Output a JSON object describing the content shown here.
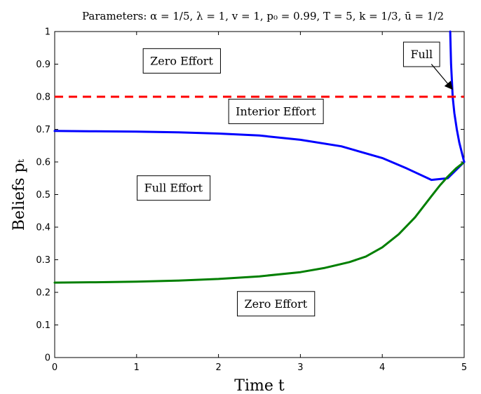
{
  "chart_data": {
    "type": "line",
    "title": "Parameters: α = 1/5, λ = 1, v = 1, p₀ = 0.99, T = 5, k = 1/3, ū = 1/2",
    "xlabel": "Time t",
    "ylabel": "Beliefs pₜ",
    "xlim": [
      0,
      5
    ],
    "ylim": [
      0,
      1
    ],
    "xticks": [
      "0",
      "1",
      "2",
      "3",
      "4",
      "5"
    ],
    "yticks": [
      "0",
      "0.1",
      "0.2",
      "0.3",
      "0.4",
      "0.5",
      "0.6",
      "0.7",
      "0.8",
      "0.9",
      "1"
    ],
    "grid": false,
    "series": [
      {
        "color": "#0000ff",
        "style": "solid",
        "x": [
          0,
          0.5,
          1,
          1.5,
          2,
          2.5,
          3,
          3.5,
          4,
          4.3,
          4.6,
          4.8,
          5
        ],
        "y": [
          0.695,
          0.694,
          0.693,
          0.691,
          0.687,
          0.681,
          0.668,
          0.648,
          0.612,
          0.58,
          0.545,
          0.55,
          0.6
        ]
      },
      {
        "color": "#007f00",
        "style": "solid",
        "x": [
          0,
          0.5,
          1,
          1.5,
          2,
          2.5,
          3,
          3.3,
          3.6,
          3.8,
          4,
          4.2,
          4.4,
          4.6,
          4.7,
          4.8,
          4.9,
          5
        ],
        "y": [
          0.23,
          0.231,
          0.233,
          0.236,
          0.241,
          0.249,
          0.262,
          0.275,
          0.293,
          0.31,
          0.338,
          0.378,
          0.43,
          0.495,
          0.527,
          0.555,
          0.58,
          0.6
        ]
      },
      {
        "color": "#0000ff",
        "style": "solid",
        "x": [
          4.83,
          4.835,
          4.84,
          4.85,
          4.86,
          4.88,
          4.91,
          4.94,
          4.97,
          5
        ],
        "y": [
          1.0,
          0.95,
          0.9,
          0.85,
          0.8,
          0.75,
          0.7,
          0.66,
          0.63,
          0.6
        ]
      },
      {
        "color": "#ff0000",
        "style": "dashed",
        "x": [
          0,
          5
        ],
        "y": [
          0.8,
          0.8
        ]
      }
    ],
    "annotations": [
      {
        "text": "Zero Effort",
        "x": 1.55,
        "y": 0.91
      },
      {
        "text": "Interior Effort",
        "x": 2.7,
        "y": 0.755
      },
      {
        "text": "Full Effort",
        "x": 1.45,
        "y": 0.52
      },
      {
        "text": "Zero Effort",
        "x": 2.7,
        "y": 0.165
      },
      {
        "text": "Full",
        "x": 4.48,
        "y": 0.93
      }
    ],
    "arrow": {
      "from": [
        4.6,
        0.9
      ],
      "to": [
        4.85,
        0.825
      ]
    }
  }
}
